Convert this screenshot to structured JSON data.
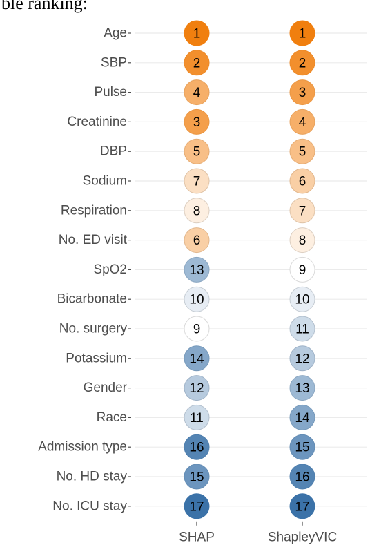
{
  "caption_fragment": "ble ranking:",
  "chart_data": {
    "type": "dot-rank",
    "xlabel": "",
    "ylabel": "",
    "columns": [
      "SHAP",
      "ShapleyVIC"
    ],
    "categories": [
      "Age",
      "SBP",
      "Pulse",
      "Creatinine",
      "DBP",
      "Sodium",
      "Respiration",
      "No. ED visit",
      "SpO2",
      "Bicarbonate",
      "No. surgery",
      "Potassium",
      "Gender",
      "Race",
      "Admission type",
      "No. HD stay",
      "No. ICU stay"
    ],
    "series": [
      {
        "name": "SHAP",
        "values": [
          1,
          2,
          4,
          3,
          5,
          7,
          8,
          6,
          13,
          10,
          9,
          14,
          12,
          11,
          16,
          15,
          17
        ]
      },
      {
        "name": "ShapleyVIC",
        "values": [
          1,
          2,
          3,
          4,
          5,
          6,
          7,
          8,
          9,
          10,
          11,
          12,
          13,
          14,
          15,
          16,
          17
        ]
      }
    ],
    "color_scale": {
      "low": "#f07f0f",
      "mid": "#ffffff",
      "high": "#3b72a8",
      "mid_value": 9,
      "range": [
        1,
        17
      ]
    },
    "grid": true,
    "legend": "none"
  }
}
